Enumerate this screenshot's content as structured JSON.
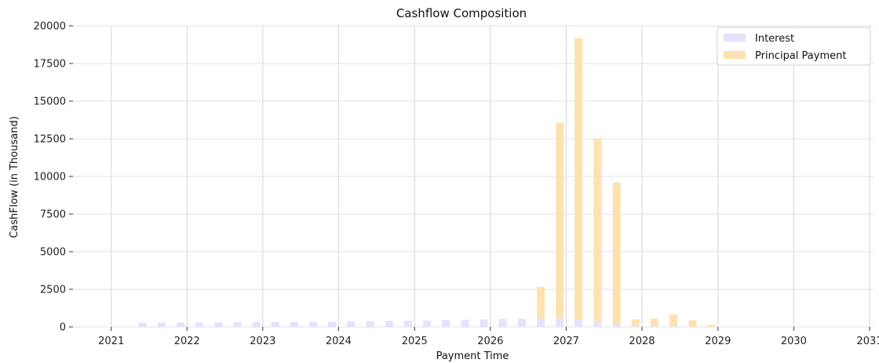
{
  "chart_data": {
    "type": "bar",
    "title": "Cashflow Composition",
    "xlabel": "Payment Time",
    "ylabel": "CashFlow (in Thousand)",
    "ylim": [
      0,
      20000
    ],
    "xlim": [
      "2020-07-01",
      "2031-01-20"
    ],
    "yticks": [
      "0",
      "2500",
      "5000",
      "7500",
      "10000",
      "12500",
      "15000",
      "17500",
      "20000"
    ],
    "xticks": [
      "2021",
      "2022",
      "2023",
      "2024",
      "2025",
      "2026",
      "2027",
      "2028",
      "2029",
      "2030",
      "2031"
    ],
    "grid": true,
    "legend_position": "top-right",
    "stacked": true,
    "series": [
      {
        "name": "Interest",
        "color": "#e3e3fb",
        "points": [
          {
            "x": "2021-06-01",
            "y": 290
          },
          {
            "x": "2021-09-01",
            "y": 290
          },
          {
            "x": "2021-12-01",
            "y": 290
          },
          {
            "x": "2022-03-01",
            "y": 295
          },
          {
            "x": "2022-06-01",
            "y": 300
          },
          {
            "x": "2022-09-01",
            "y": 305
          },
          {
            "x": "2022-12-01",
            "y": 310
          },
          {
            "x": "2023-03-01",
            "y": 320
          },
          {
            "x": "2023-06-01",
            "y": 330
          },
          {
            "x": "2023-09-01",
            "y": 340
          },
          {
            "x": "2023-12-01",
            "y": 350
          },
          {
            "x": "2024-03-01",
            "y": 365
          },
          {
            "x": "2024-06-01",
            "y": 380
          },
          {
            "x": "2024-09-01",
            "y": 400
          },
          {
            "x": "2024-12-01",
            "y": 420
          },
          {
            "x": "2025-03-01",
            "y": 440
          },
          {
            "x": "2025-06-01",
            "y": 460
          },
          {
            "x": "2025-09-01",
            "y": 480
          },
          {
            "x": "2025-12-01",
            "y": 500
          },
          {
            "x": "2026-03-01",
            "y": 520
          },
          {
            "x": "2026-06-01",
            "y": 540
          },
          {
            "x": "2026-09-01",
            "y": 560
          },
          {
            "x": "2026-12-01",
            "y": 580
          },
          {
            "x": "2027-03-01",
            "y": 480
          },
          {
            "x": "2027-06-01",
            "y": 320
          },
          {
            "x": "2027-09-01",
            "y": 180
          },
          {
            "x": "2027-12-01",
            "y": 90
          },
          {
            "x": "2028-03-01",
            "y": 60
          },
          {
            "x": "2028-06-01",
            "y": 40
          },
          {
            "x": "2028-09-01",
            "y": 20
          },
          {
            "x": "2028-12-01",
            "y": 10
          }
        ]
      },
      {
        "name": "Principal Payment",
        "color": "#fde2b0",
        "points": [
          {
            "x": "2026-09-01",
            "y": 2100
          },
          {
            "x": "2026-12-01",
            "y": 13000
          },
          {
            "x": "2027-03-01",
            "y": 18700
          },
          {
            "x": "2027-06-01",
            "y": 12150
          },
          {
            "x": "2027-09-01",
            "y": 9420
          },
          {
            "x": "2027-12-01",
            "y": 410
          },
          {
            "x": "2028-03-01",
            "y": 500
          },
          {
            "x": "2028-06-01",
            "y": 780
          },
          {
            "x": "2028-09-01",
            "y": 430
          },
          {
            "x": "2028-12-01",
            "y": 130
          }
        ]
      }
    ]
  }
}
